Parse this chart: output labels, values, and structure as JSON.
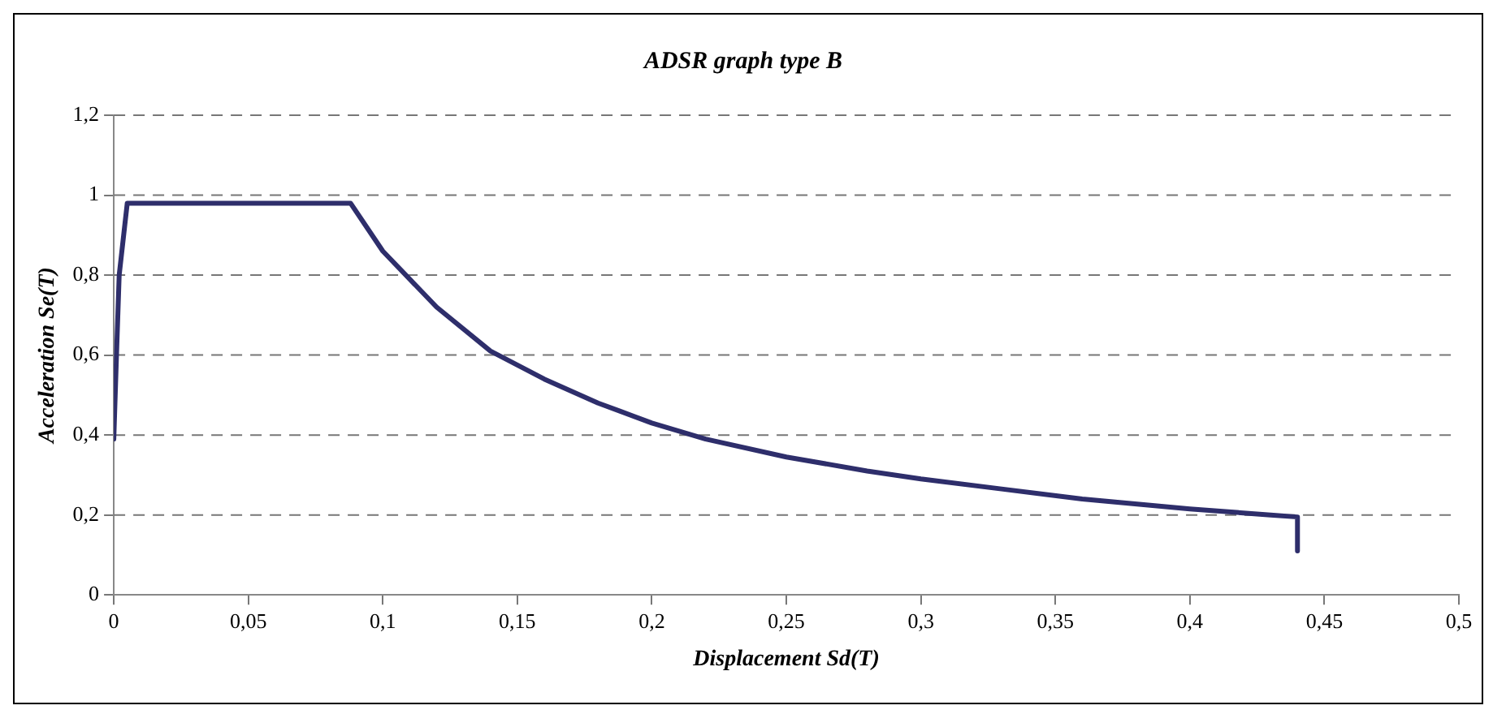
{
  "chart_data": {
    "type": "line",
    "title": "ADSR graph type B",
    "xlabel": "Displacement Sd(T)",
    "ylabel": "Acceleration Se(T)",
    "x": [
      0,
      0.001,
      0.002,
      0.004,
      0.005,
      0.088,
      0.1,
      0.12,
      0.14,
      0.16,
      0.18,
      0.2,
      0.22,
      0.25,
      0.28,
      0.3,
      0.33,
      0.36,
      0.4,
      0.43,
      0.44,
      0.44
    ],
    "series": [
      {
        "color": "#2e2e6b",
        "values": [
          0.39,
          0.6,
          0.8,
          0.92,
          0.98,
          0.98,
          0.86,
          0.72,
          0.61,
          0.54,
          0.48,
          0.43,
          0.39,
          0.345,
          0.31,
          0.29,
          0.265,
          0.24,
          0.215,
          0.2,
          0.195,
          0.11
        ]
      }
    ],
    "xlim": [
      0,
      0.5
    ],
    "ylim": [
      0,
      1.2
    ],
    "xticks": [
      0,
      {
        "value": 0.05,
        "label": "0,05"
      },
      {
        "value": 0.1,
        "label": "0,1"
      },
      {
        "value": 0.15,
        "label": "0,15"
      },
      {
        "value": 0.2,
        "label": "0,2"
      },
      {
        "value": 0.25,
        "label": "0,25"
      },
      {
        "value": 0.3,
        "label": "0,3"
      },
      {
        "value": 0.35,
        "label": "0,35"
      },
      {
        "value": 0.4,
        "label": "0,4"
      },
      {
        "value": 0.45,
        "label": "0,45"
      },
      {
        "value": 0.5,
        "label": "0,5"
      }
    ],
    "yticks": [
      0,
      {
        "value": 0.2,
        "label": "0,2"
      },
      {
        "value": 0.4,
        "label": "0,4"
      },
      {
        "value": 0.6,
        "label": "0,6"
      },
      {
        "value": 0.8,
        "label": "0,8"
      },
      1,
      {
        "value": 1.2,
        "label": "1,2"
      }
    ],
    "grid": "y",
    "legend": false,
    "marker": "none",
    "line_style": "solid"
  }
}
